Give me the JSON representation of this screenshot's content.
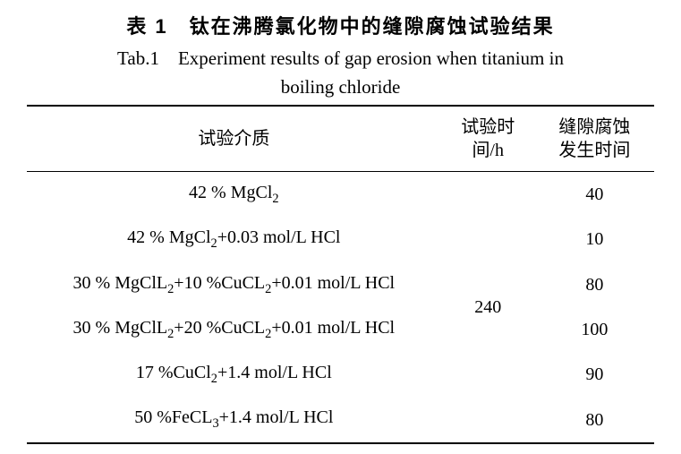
{
  "title_zh": "表 1　钛在沸腾氯化物中的缝隙腐蚀试验结果",
  "title_en_line1": "Tab.1　Experiment results of gap erosion when titanium in",
  "title_en_line2": "boiling chloride",
  "table": {
    "headers": {
      "medium": "试验介质",
      "time_line1": "试验时",
      "time_line2": "间/h",
      "gap_line1": "缝隙腐蚀",
      "gap_line2": "发生时间"
    },
    "time_value": "240",
    "rows": [
      {
        "medium_html": "42 % MgCl<sub>2</sub>",
        "gap_time": "40"
      },
      {
        "medium_html": "42 % MgCl<sub>2</sub>+0.03 mol/L HCl",
        "gap_time": "10"
      },
      {
        "medium_html": "30 % MgClL<sub>2</sub>+10 %CuCL<sub>2</sub>+0.01 mol/L HCl",
        "gap_time": "80"
      },
      {
        "medium_html": "30 % MgClL<sub>2</sub>+20 %CuCL<sub>2</sub>+0.01 mol/L HCl",
        "gap_time": "100"
      },
      {
        "medium_html": "17 %CuCl<sub>2</sub>+1.4 mol/L HCl",
        "gap_time": "90"
      },
      {
        "medium_html": "50 %FeCL<sub>3</sub>+1.4 mol/L HCl",
        "gap_time": "80"
      }
    ]
  },
  "colors": {
    "background": "#ffffff",
    "text": "#000000",
    "border": "#000000"
  }
}
